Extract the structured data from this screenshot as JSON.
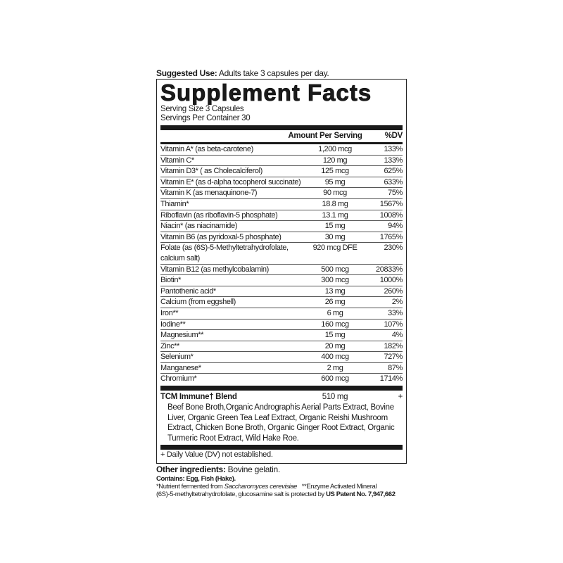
{
  "suggested_use": {
    "label": "Suggested Use:",
    "text": " Adults take 3 capsules per day."
  },
  "title": "Supplement Facts",
  "serving_size": "Serving Size 3 Capsules",
  "servings_per_container": "Servings Per Container 30",
  "headers": {
    "amount": "Amount Per Serving",
    "dv": "%DV"
  },
  "nutrients": [
    {
      "name": "Vitamin A* (as beta-carotene)",
      "amount": "1,200 mcg",
      "dv": "133%"
    },
    {
      "name": "Vitamin C*",
      "amount": "120 mg",
      "dv": "133%"
    },
    {
      "name": "Vitamin D3* ( as Cholecalciferol)",
      "amount": "125 mcg",
      "dv": "625%"
    },
    {
      "name": "Vitamin E* (as d-alpha tocopherol succinate)",
      "amount": "95 mg",
      "dv": "633%"
    },
    {
      "name": "Vitamin K (as menaquinone-7)",
      "amount": "90 mcg",
      "dv": "75%"
    },
    {
      "name": "Thiamin*",
      "amount": "18.8 mg",
      "dv": "1567%"
    },
    {
      "name": "Riboflavin (as riboflavin-5 phosphate)",
      "amount": "13.1 mg",
      "dv": "1008%"
    },
    {
      "name": "Niacin* (as niacinamide)",
      "amount": "15 mg",
      "dv": "94%"
    },
    {
      "name": "Vitamin B6 (as pyridoxal-5 phosphate)",
      "amount": "30 mg",
      "dv": "1765%"
    },
    {
      "name": "Folate (as (6S)-5-Methyltetrahydrofolate,\n   calcium salt)",
      "amount": "920 mcg DFE",
      "dv": "230%"
    },
    {
      "name": "Vitamin B12 (as methylcobalamin)",
      "amount": "500 mcg",
      "dv": "20833%"
    },
    {
      "name": "Biotin*",
      "amount": "300 mcg",
      "dv": "1000%"
    },
    {
      "name": "Pantothenic acid*",
      "amount": "13 mg",
      "dv": "260%"
    },
    {
      "name": "Calcium (from eggshell)",
      "amount": "26 mg",
      "dv": "2%"
    },
    {
      "name": "Iron**",
      "amount": "6 mg",
      "dv": "33%"
    },
    {
      "name": "Iodine**",
      "amount": "160 mcg",
      "dv": "107%"
    },
    {
      "name": "Magnesium**",
      "amount": "15 mg",
      "dv": "4%"
    },
    {
      "name": "Zinc**",
      "amount": "20 mg",
      "dv": "182%"
    },
    {
      "name": "Selenium*",
      "amount": "400 mcg",
      "dv": "727%"
    },
    {
      "name": "Manganese*",
      "amount": "2 mg",
      "dv": "87%"
    },
    {
      "name": "Chromium*",
      "amount": "600 mcg",
      "dv": "1714%"
    }
  ],
  "blend": {
    "name": "TCM Immune† Blend",
    "amount": "510 mg",
    "dv": "+",
    "ingredients": "Beef Bone Broth,Organic Andrographis Aerial Parts Extract, Bovine Liver, Organic Green Tea Leaf Extract, Organic Reishi Mushroom Extract, Chicken Bone Broth, Organic Ginger Root Extract, Organic Turmeric Root Extract, Wild Hake Roe."
  },
  "dv_note": "+ Daily Value (DV) not established.",
  "other": {
    "label": "Other ingredients:",
    "text": " Bovine gelatin."
  },
  "contains": "Contains: Egg, Fish (Hake).",
  "footnote": {
    "a": "*Nutrient fermented from ",
    "a_italic": "Saccharomyces cerevisiae",
    "b": "   **Enzyme Activated Mineral",
    "c": "(6S)-5-methyltetrahydrofolate, glucosamine salt is protected by ",
    "patent": "US Patent No. 7,947,662"
  }
}
